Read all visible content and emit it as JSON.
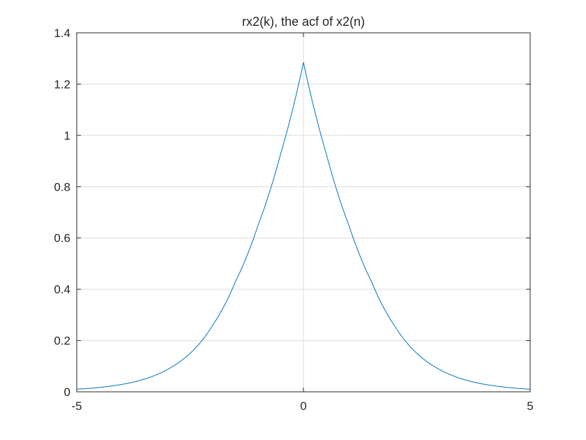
{
  "chart_data": {
    "type": "line",
    "title": "rx2(k), the acf of x2(n)",
    "xlabel": "",
    "ylabel": "",
    "xlim": [
      -5,
      5
    ],
    "ylim": [
      0,
      1.4
    ],
    "grid": true,
    "xticks": [
      -5,
      0,
      5
    ],
    "xtick_labels": [
      "-5",
      "0",
      "5"
    ],
    "yticks": [
      0,
      0.2,
      0.4,
      0.6,
      0.8,
      1,
      1.2,
      1.4
    ],
    "ytick_labels": [
      "0",
      "0.2",
      "0.4",
      "0.6",
      "0.8",
      "1",
      "1.2",
      "1.4"
    ],
    "colors": {
      "line": "#0072BD",
      "grid": "#dcdcdc",
      "axes": "#262626"
    },
    "series": [
      {
        "x": [
          -5,
          -4.5,
          -4,
          -3.5,
          -3,
          -2.5,
          -2,
          -1.5,
          -1,
          -0.5,
          0,
          0.5,
          1,
          1.5,
          2,
          2.5,
          3,
          3.5,
          4,
          4.5,
          5
        ],
        "values": [
          0.01,
          0.017,
          0.029,
          0.05,
          0.087,
          0.15,
          0.26,
          0.43,
          0.65,
          0.93,
          1.285,
          0.93,
          0.65,
          0.43,
          0.26,
          0.15,
          0.087,
          0.05,
          0.029,
          0.017,
          0.01
        ]
      }
    ]
  }
}
